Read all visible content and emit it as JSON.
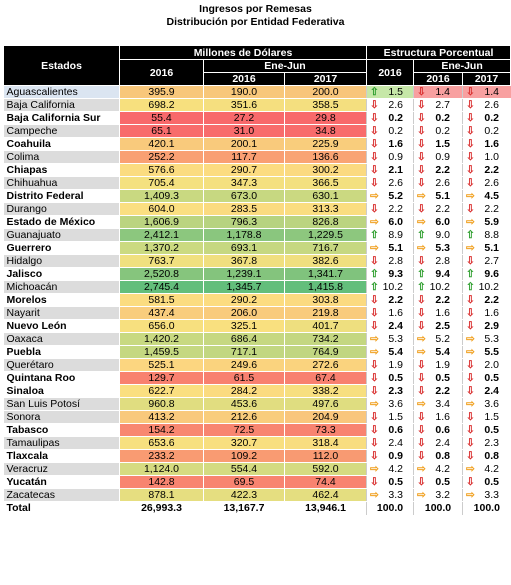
{
  "title_lines": [
    "Ingresos por Remesas",
    "Distribución por Entidad Federativa"
  ],
  "headers": {
    "estados": "Estados",
    "millones": "Millones de Dólares",
    "estructura": "Estructura Porcentual",
    "year_2016": "2016",
    "ene_jun": "Ene-Jun",
    "ej_2016": "2016",
    "ej_2017": "2017",
    "p_2016": "2016",
    "pej_2016": "2016",
    "pej_2017": "2017"
  },
  "colors": {
    "header_bg": "#000000",
    "arrow_up": "#2e9e2e",
    "arrow_down": "#d93030",
    "arrow_right": "#f0a020"
  },
  "rows": [
    {
      "name": "Aguascalientes",
      "bold": false,
      "hl": true,
      "v": [
        "395.9",
        "190.0",
        "200.0"
      ],
      "c": [
        "#f8c77a",
        "#f8c77a",
        "#f8c57a"
      ],
      "p": [
        "1.5",
        "1.4",
        "1.4"
      ],
      "a": [
        "up",
        "dn",
        "dn"
      ],
      "pbg": [
        "#c6e7a8",
        "#f8a0a0",
        "#f8a0a0"
      ]
    },
    {
      "name": "Baja California",
      "bold": false,
      "v": [
        "698.2",
        "351.6",
        "358.5"
      ],
      "c": [
        "#f7e07e",
        "#f5df7f",
        "#f4df7f"
      ],
      "p": [
        "2.6",
        "2.7",
        "2.6"
      ],
      "a": [
        "dn",
        "dn",
        "dn"
      ]
    },
    {
      "name": "Baja California Sur",
      "bold": true,
      "v": [
        "55.4",
        "27.2",
        "29.8"
      ],
      "c": [
        "#f8696b",
        "#f8696b",
        "#f8696b"
      ],
      "p": [
        "0.2",
        "0.2",
        "0.2"
      ],
      "a": [
        "dn",
        "dn",
        "dn"
      ]
    },
    {
      "name": "Campeche",
      "bold": false,
      "v": [
        "65.1",
        "31.0",
        "34.8"
      ],
      "c": [
        "#f86c6c",
        "#f86c6c",
        "#f86c6c"
      ],
      "p": [
        "0.2",
        "0.2",
        "0.2"
      ],
      "a": [
        "dn",
        "dn",
        "dn"
      ]
    },
    {
      "name": "Coahuila",
      "bold": true,
      "v": [
        "420.1",
        "200.1",
        "225.9"
      ],
      "c": [
        "#f9ca7c",
        "#f9ca7c",
        "#f9cd7c"
      ],
      "p": [
        "1.6",
        "1.5",
        "1.6"
      ],
      "a": [
        "dn",
        "dn",
        "dn"
      ]
    },
    {
      "name": "Colima",
      "bold": false,
      "v": [
        "252.2",
        "117.7",
        "136.6"
      ],
      "c": [
        "#f9a073",
        "#f99f73",
        "#f9a474"
      ],
      "p": [
        "0.9",
        "0.9",
        "1.0"
      ],
      "a": [
        "dn",
        "dn",
        "dn"
      ]
    },
    {
      "name": "Chiapas",
      "bold": true,
      "v": [
        "576.6",
        "290.7",
        "300.2"
      ],
      "c": [
        "#fbdc80",
        "#fcdc80",
        "#fbda80"
      ],
      "p": [
        "2.1",
        "2.2",
        "2.2"
      ],
      "a": [
        "dn",
        "dn",
        "dn"
      ]
    },
    {
      "name": "Chihuahua",
      "bold": false,
      "v": [
        "705.4",
        "347.3",
        "366.5"
      ],
      "c": [
        "#f4e17f",
        "#f4e07f",
        "#f3e07f"
      ],
      "p": [
        "2.6",
        "2.6",
        "2.6"
      ],
      "a": [
        "dn",
        "dn",
        "dn"
      ]
    },
    {
      "name": "Distrito Federal",
      "bold": true,
      "v": [
        "1,409.3",
        "673.0",
        "630.1"
      ],
      "c": [
        "#c9d981",
        "#c7d881",
        "#cbd981"
      ],
      "p": [
        "5.2",
        "5.1",
        "4.5"
      ],
      "a": [
        "rt",
        "rt",
        "rt"
      ]
    },
    {
      "name": "Durango",
      "bold": false,
      "v": [
        "604.0",
        "283.5",
        "313.3"
      ],
      "c": [
        "#fbdf81",
        "#fbdb80",
        "#fadd80"
      ],
      "p": [
        "2.2",
        "2.2",
        "2.2"
      ],
      "a": [
        "dn",
        "dn",
        "dn"
      ]
    },
    {
      "name": "Estado de México",
      "bold": true,
      "v": [
        "1,606.9",
        "796.3",
        "826.8"
      ],
      "c": [
        "#bbd480",
        "#b7d380",
        "#bbd480"
      ],
      "p": [
        "6.0",
        "6.0",
        "5.9"
      ],
      "a": [
        "rt",
        "rt",
        "rt"
      ]
    },
    {
      "name": "Guanajuato",
      "bold": false,
      "v": [
        "2,412.1",
        "1,178.8",
        "1,229.5"
      ],
      "c": [
        "#8cc77e",
        "#8ac67e",
        "#8dc77e"
      ],
      "p": [
        "8.9",
        "9.0",
        "8.8"
      ],
      "a": [
        "up",
        "up",
        "up"
      ]
    },
    {
      "name": "Guerrero",
      "bold": true,
      "v": [
        "1,370.2",
        "693.1",
        "716.7"
      ],
      "c": [
        "#cbda81",
        "#c6d881",
        "#c6d881"
      ],
      "p": [
        "5.1",
        "5.3",
        "5.1"
      ],
      "a": [
        "rt",
        "rt",
        "rt"
      ]
    },
    {
      "name": "Hidalgo",
      "bold": false,
      "v": [
        "763.7",
        "367.8",
        "382.6"
      ],
      "c": [
        "#f0e07f",
        "#f0df7f",
        "#f0df7f"
      ],
      "p": [
        "2.8",
        "2.8",
        "2.7"
      ],
      "a": [
        "dn",
        "dn",
        "dn"
      ]
    },
    {
      "name": "Jalisco",
      "bold": true,
      "v": [
        "2,520.8",
        "1,239.1",
        "1,341.7"
      ],
      "c": [
        "#86c57d",
        "#84c47d",
        "#80c37d"
      ],
      "p": [
        "9.3",
        "9.4",
        "9.6"
      ],
      "a": [
        "up",
        "up",
        "up"
      ]
    },
    {
      "name": "Michoacán",
      "bold": false,
      "v": [
        "2,745.4",
        "1,345.7",
        "1,415.8"
      ],
      "c": [
        "#63be7b",
        "#63be7b",
        "#63be7b"
      ],
      "p": [
        "10.2",
        "10.2",
        "10.2"
      ],
      "a": [
        "up",
        "up",
        "up"
      ]
    },
    {
      "name": "Morelos",
      "bold": true,
      "v": [
        "581.5",
        "290.2",
        "303.8"
      ],
      "c": [
        "#fbdc80",
        "#fcdc80",
        "#fbda80"
      ],
      "p": [
        "2.2",
        "2.2",
        "2.2"
      ],
      "a": [
        "dn",
        "dn",
        "dn"
      ]
    },
    {
      "name": "Nayarit",
      "bold": false,
      "v": [
        "437.4",
        "206.0",
        "219.8"
      ],
      "c": [
        "#f9cd7d",
        "#f9cb7c",
        "#f9cb7c"
      ],
      "p": [
        "1.6",
        "1.6",
        "1.6"
      ],
      "a": [
        "dn",
        "dn",
        "dn"
      ]
    },
    {
      "name": "Nuevo León",
      "bold": true,
      "v": [
        "656.0",
        "325.1",
        "401.7"
      ],
      "c": [
        "#f7e07f",
        "#f9e07f",
        "#eedf7f"
      ],
      "p": [
        "2.4",
        "2.5",
        "2.9"
      ],
      "a": [
        "dn",
        "dn",
        "dn"
      ]
    },
    {
      "name": "Oaxaca",
      "bold": false,
      "v": [
        "1,420.2",
        "686.4",
        "734.2"
      ],
      "c": [
        "#c8d981",
        "#c6d881",
        "#c4d781"
      ],
      "p": [
        "5.3",
        "5.2",
        "5.3"
      ],
      "a": [
        "rt",
        "rt",
        "rt"
      ]
    },
    {
      "name": "Puebla",
      "bold": true,
      "v": [
        "1,459.5",
        "717.1",
        "764.9"
      ],
      "c": [
        "#c5d881",
        "#c2d781",
        "#c1d681"
      ],
      "p": [
        "5.4",
        "5.4",
        "5.5"
      ],
      "a": [
        "rt",
        "rt",
        "rt"
      ]
    },
    {
      "name": "Querétaro",
      "bold": false,
      "v": [
        "525.1",
        "249.6",
        "272.6"
      ],
      "c": [
        "#fcd680",
        "#fad37e",
        "#fad37e"
      ],
      "p": [
        "1.9",
        "1.9",
        "2.0"
      ],
      "a": [
        "dn",
        "dn",
        "dn"
      ]
    },
    {
      "name": "Quintana Roo",
      "bold": true,
      "v": [
        "129.7",
        "61.5",
        "67.4"
      ],
      "c": [
        "#f8816f",
        "#f8806f",
        "#f8806f"
      ],
      "p": [
        "0.5",
        "0.5",
        "0.5"
      ],
      "a": [
        "dn",
        "dn",
        "dn"
      ]
    },
    {
      "name": "Sinaloa",
      "bold": true,
      "v": [
        "622.7",
        "284.2",
        "338.2"
      ],
      "c": [
        "#fadf80",
        "#fbdb80",
        "#f7df7f"
      ],
      "p": [
        "2.3",
        "2.2",
        "2.4"
      ],
      "a": [
        "dn",
        "dn",
        "dn"
      ]
    },
    {
      "name": "San Luis Potosí",
      "bold": false,
      "v": [
        "960.8",
        "453.6",
        "497.6"
      ],
      "c": [
        "#e0dd80",
        "#e1dd80",
        "#dfdd80"
      ],
      "p": [
        "3.6",
        "3.4",
        "3.6"
      ],
      "a": [
        "rt",
        "rt",
        "rt"
      ]
    },
    {
      "name": "Sonora",
      "bold": false,
      "v": [
        "413.2",
        "212.6",
        "204.9"
      ],
      "c": [
        "#f9c97c",
        "#f9cd7c",
        "#f9c67c"
      ],
      "p": [
        "1.5",
        "1.6",
        "1.5"
      ],
      "a": [
        "dn",
        "dn",
        "dn"
      ]
    },
    {
      "name": "Tabasco",
      "bold": true,
      "v": [
        "154.2",
        "72.5",
        "73.3"
      ],
      "c": [
        "#f88770",
        "#f88570",
        "#f88370"
      ],
      "p": [
        "0.6",
        "0.6",
        "0.5"
      ],
      "a": [
        "dn",
        "dn",
        "dn"
      ]
    },
    {
      "name": "Tamaulipas",
      "bold": false,
      "v": [
        "653.6",
        "320.7",
        "318.4"
      ],
      "c": [
        "#f7e07f",
        "#f8df7f",
        "#f8dd80"
      ],
      "p": [
        "2.4",
        "2.4",
        "2.3"
      ],
      "a": [
        "dn",
        "dn",
        "dn"
      ]
    },
    {
      "name": "Tlaxcala",
      "bold": true,
      "v": [
        "233.2",
        "109.2",
        "112.0"
      ],
      "c": [
        "#f99b72",
        "#f99b72",
        "#f89a72"
      ],
      "p": [
        "0.9",
        "0.8",
        "0.8"
      ],
      "a": [
        "dn",
        "dn",
        "dn"
      ]
    },
    {
      "name": "Veracruz",
      "bold": false,
      "v": [
        "1,124.0",
        "554.4",
        "592.0"
      ],
      "c": [
        "#d6db81",
        "#d4db81",
        "#d5db81"
      ],
      "p": [
        "4.2",
        "4.2",
        "4.2"
      ],
      "a": [
        "rt",
        "rt",
        "rt"
      ]
    },
    {
      "name": "Yucatán",
      "bold": true,
      "v": [
        "142.8",
        "69.5",
        "74.4"
      ],
      "c": [
        "#f88470",
        "#f88470",
        "#f88370"
      ],
      "p": [
        "0.5",
        "0.5",
        "0.5"
      ],
      "a": [
        "dn",
        "dn",
        "dn"
      ]
    },
    {
      "name": "Zacatecas",
      "bold": false,
      "v": [
        "878.1",
        "422.3",
        "462.4"
      ],
      "c": [
        "#e6de80",
        "#e5de80",
        "#e4de80"
      ],
      "p": [
        "3.3",
        "3.2",
        "3.3"
      ],
      "a": [
        "rt",
        "rt",
        "rt"
      ]
    }
  ],
  "total": {
    "name": "Total",
    "v": [
      "26,993.3",
      "13,167.7",
      "13,946.1"
    ],
    "p": [
      "100.0",
      "100.0",
      "100.0"
    ]
  }
}
